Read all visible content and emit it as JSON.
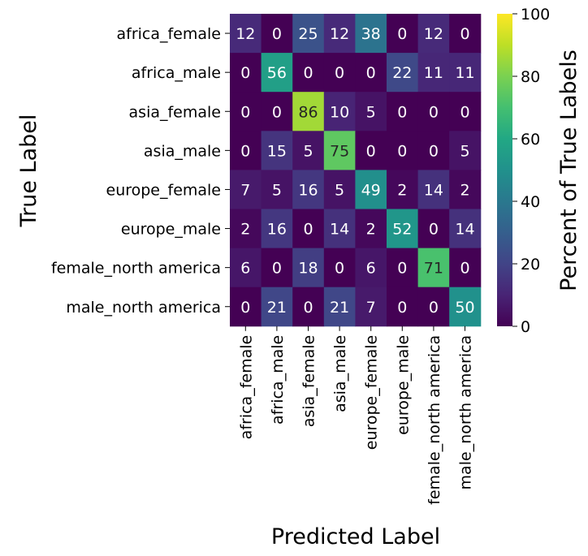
{
  "chart_data": {
    "type": "heatmap",
    "title": "",
    "xlabel": "Predicted Label",
    "ylabel": "True Label",
    "colorbar_label": "Percent of True Labels",
    "colormap": "viridis",
    "value_range": [
      0,
      100
    ],
    "colorbar_ticks": [
      "0",
      "20",
      "40",
      "60",
      "80",
      "100"
    ],
    "rows": [
      "africa_female",
      "africa_male",
      "asia_female",
      "asia_male",
      "europe_female",
      "europe_male",
      "female_north america",
      "male_north america"
    ],
    "columns": [
      "africa_female",
      "africa_male",
      "asia_female",
      "asia_male",
      "europe_female",
      "europe_male",
      "female_north america",
      "male_north america"
    ],
    "values": [
      [
        12,
        0,
        25,
        12,
        38,
        0,
        12,
        0
      ],
      [
        0,
        56,
        0,
        0,
        0,
        22,
        11,
        11
      ],
      [
        0,
        0,
        86,
        10,
        5,
        0,
        0,
        0
      ],
      [
        0,
        15,
        5,
        75,
        0,
        0,
        0,
        5
      ],
      [
        7,
        5,
        16,
        5,
        49,
        2,
        14,
        2
      ],
      [
        2,
        16,
        0,
        14,
        2,
        52,
        0,
        14
      ],
      [
        6,
        0,
        18,
        0,
        6,
        0,
        71,
        0
      ],
      [
        0,
        21,
        0,
        21,
        7,
        0,
        0,
        50
      ]
    ]
  }
}
